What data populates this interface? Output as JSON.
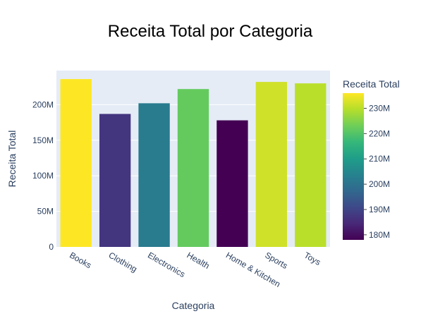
{
  "chart_data": {
    "type": "bar",
    "title": "Receita Total por Categoria",
    "xlabel": "Categoria",
    "ylabel": "Receita Total",
    "categories": [
      "Books",
      "Clothing",
      "Electronics",
      "Health",
      "Home & Kitchen",
      "Sports",
      "Toys"
    ],
    "values": [
      236000000,
      187000000,
      202000000,
      222000000,
      178000000,
      232000000,
      230000000
    ],
    "ylim": [
      0,
      248000000
    ],
    "yticks": [
      0,
      50000000,
      100000000,
      150000000,
      200000000
    ],
    "ytick_labels": [
      "0",
      "50M",
      "100M",
      "150M",
      "200M"
    ],
    "grid": true,
    "colorscale": "Viridis",
    "colorbar": {
      "title": "Receita Total",
      "range": [
        178000000,
        236000000
      ],
      "ticks": [
        180000000,
        190000000,
        200000000,
        210000000,
        220000000,
        230000000
      ],
      "tick_labels": [
        "180M",
        "190M",
        "200M",
        "210M",
        "220M",
        "230M"
      ]
    },
    "colors": {
      "plot_bg": "#e5ecf6",
      "grid": "#ffffff",
      "text": "#2a3f5f",
      "title": "#2a3f5f"
    }
  }
}
